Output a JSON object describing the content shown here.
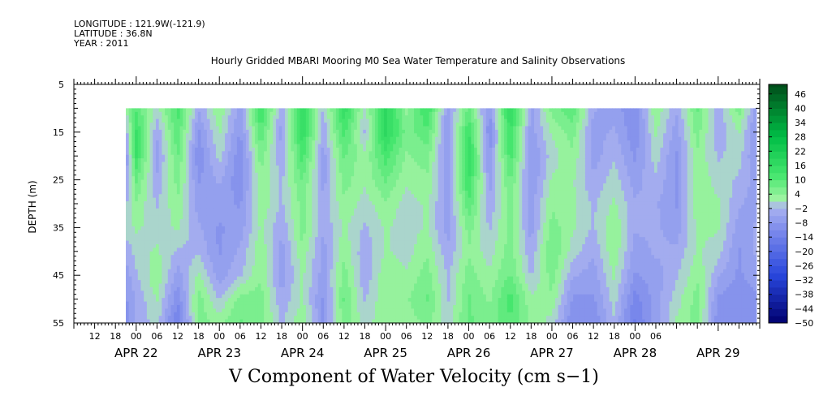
{
  "header": {
    "longitude": "LONGITUDE : 121.9W(-121.9)",
    "latitude": "LATITUDE : 36.8N",
    "year": "YEAR : 2011"
  },
  "chart_data": {
    "type": "heatmap",
    "title": "Hourly Gridded MBARI Mooring M0 Sea Water Temperature and Salinity Observations",
    "xlabel": "V Component of Water Velocity (cm s−1)",
    "ylabel": "DEPTH (m)",
    "y_axis": {
      "range": [
        5,
        55
      ],
      "inverted": true,
      "ticks": [
        5,
        15,
        25,
        35,
        45,
        55
      ]
    },
    "x_axis": {
      "start": "APR 21 2011 06:00",
      "end": "APR 29 2011 12:00",
      "hour_tick_labels": [
        {
          "day": 21,
          "hour": 12,
          "label": "12"
        },
        {
          "day": 21,
          "hour": 18,
          "label": "18"
        },
        {
          "day": 22,
          "hour": 0,
          "label": "00"
        },
        {
          "day": 22,
          "hour": 6,
          "label": "06"
        },
        {
          "day": 22,
          "hour": 12,
          "label": "12"
        },
        {
          "day": 22,
          "hour": 18,
          "label": "18"
        },
        {
          "day": 23,
          "hour": 0,
          "label": "00"
        },
        {
          "day": 23,
          "hour": 6,
          "label": "06"
        },
        {
          "day": 23,
          "hour": 12,
          "label": "12"
        },
        {
          "day": 23,
          "hour": 18,
          "label": "18"
        },
        {
          "day": 24,
          "hour": 0,
          "label": "00"
        },
        {
          "day": 24,
          "hour": 6,
          "label": "06"
        },
        {
          "day": 24,
          "hour": 12,
          "label": "12"
        },
        {
          "day": 24,
          "hour": 18,
          "label": "18"
        },
        {
          "day": 25,
          "hour": 0,
          "label": "00"
        },
        {
          "day": 25,
          "hour": 6,
          "label": "06"
        },
        {
          "day": 25,
          "hour": 12,
          "label": "12"
        },
        {
          "day": 25,
          "hour": 18,
          "label": "18"
        },
        {
          "day": 26,
          "hour": 0,
          "label": "00"
        },
        {
          "day": 26,
          "hour": 6,
          "label": "06"
        },
        {
          "day": 26,
          "hour": 12,
          "label": "12"
        },
        {
          "day": 26,
          "hour": 18,
          "label": "18"
        },
        {
          "day": 27,
          "hour": 0,
          "label": "00"
        },
        {
          "day": 27,
          "hour": 6,
          "label": "06"
        },
        {
          "day": 27,
          "hour": 12,
          "label": "12"
        },
        {
          "day": 27,
          "hour": 18,
          "label": "18"
        },
        {
          "day": 28,
          "hour": 0,
          "label": "00"
        },
        {
          "day": 28,
          "hour": 6,
          "label": "06"
        }
      ],
      "date_labels": [
        {
          "day": 22,
          "label": "APR 22"
        },
        {
          "day": 23,
          "label": "APR 23"
        },
        {
          "day": 24,
          "label": "APR 24"
        },
        {
          "day": 25,
          "label": "APR 25"
        },
        {
          "day": 26,
          "label": "APR 26"
        },
        {
          "day": 27,
          "label": "APR 27"
        },
        {
          "day": 28,
          "label": "APR 28"
        },
        {
          "day": 29,
          "label": "APR 29"
        }
      ]
    },
    "data_extent": {
      "start": "APR 21 2011 21:00",
      "end": "APR 29 2011 11:00",
      "depth_top": 10,
      "depth_bottom": 55
    },
    "colorbar": {
      "min": -50,
      "max": 50,
      "step": 3,
      "tick_labels": [
        "46",
        "40",
        "34",
        "28",
        "22",
        "16",
        "10",
        "4",
        "−2",
        "−8",
        "−14",
        "−20",
        "−26",
        "−32",
        "−38",
        "−44",
        "−50"
      ],
      "tick_values": [
        46,
        40,
        34,
        28,
        22,
        16,
        10,
        4,
        -2,
        -8,
        -14,
        -20,
        -26,
        -32,
        -38,
        -44,
        -50
      ]
    },
    "field_summary": {
      "description_units": "cm s-1",
      "column_values_m10_to_m55": [
        {
          "day": 21,
          "hour": 21,
          "values": [
            2,
            -4,
            -8,
            -6,
            -2,
            0,
            -4,
            -6,
            -8,
            -10
          ]
        },
        {
          "day": 22,
          "hour": 0,
          "values": [
            10,
            14,
            14,
            8,
            4,
            2,
            0,
            -2,
            -4,
            -4
          ]
        },
        {
          "day": 22,
          "hour": 6,
          "values": [
            0,
            -4,
            -6,
            -4,
            -2,
            0,
            2,
            4,
            2,
            0
          ]
        },
        {
          "day": 22,
          "hour": 12,
          "values": [
            12,
            10,
            8,
            6,
            4,
            2,
            -2,
            -6,
            -10,
            -14
          ]
        },
        {
          "day": 22,
          "hour": 18,
          "values": [
            -4,
            -8,
            -10,
            -8,
            -6,
            -4,
            -2,
            2,
            6,
            6
          ]
        },
        {
          "day": 23,
          "hour": 0,
          "values": [
            4,
            2,
            0,
            -4,
            -6,
            -8,
            -8,
            -6,
            -2,
            4
          ]
        },
        {
          "day": 23,
          "hour": 6,
          "values": [
            -6,
            -8,
            -10,
            -10,
            -8,
            -6,
            -4,
            -2,
            6,
            8
          ]
        },
        {
          "day": 23,
          "hour": 12,
          "values": [
            14,
            10,
            6,
            4,
            4,
            2,
            4,
            4,
            6,
            6
          ]
        },
        {
          "day": 23,
          "hour": 18,
          "values": [
            -4,
            -6,
            -4,
            -2,
            -2,
            -4,
            -6,
            -6,
            -4,
            -2
          ]
        },
        {
          "day": 24,
          "hour": 0,
          "values": [
            16,
            16,
            12,
            8,
            6,
            6,
            4,
            2,
            2,
            4
          ]
        },
        {
          "day": 24,
          "hour": 6,
          "values": [
            -2,
            -4,
            -6,
            -6,
            -4,
            -4,
            -6,
            -6,
            -8,
            -8
          ]
        },
        {
          "day": 24,
          "hour": 12,
          "values": [
            16,
            12,
            8,
            6,
            4,
            2,
            4,
            6,
            8,
            6
          ]
        },
        {
          "day": 24,
          "hour": 18,
          "values": [
            0,
            -2,
            2,
            2,
            0,
            -2,
            -4,
            -4,
            -2,
            0
          ]
        },
        {
          "day": 25,
          "hour": 0,
          "values": [
            18,
            18,
            12,
            8,
            4,
            2,
            2,
            4,
            4,
            4
          ]
        },
        {
          "day": 25,
          "hour": 6,
          "values": [
            4,
            6,
            4,
            2,
            0,
            0,
            0,
            2,
            4,
            2
          ]
        },
        {
          "day": 25,
          "hour": 12,
          "values": [
            14,
            10,
            6,
            4,
            2,
            2,
            4,
            6,
            8,
            6
          ]
        },
        {
          "day": 25,
          "hour": 18,
          "values": [
            -6,
            -8,
            -8,
            -6,
            -6,
            -6,
            -4,
            -2,
            -2,
            0
          ]
        },
        {
          "day": 26,
          "hour": 0,
          "values": [
            8,
            14,
            16,
            14,
            10,
            6,
            4,
            6,
            8,
            8
          ]
        },
        {
          "day": 26,
          "hour": 6,
          "values": [
            -8,
            -10,
            -8,
            -6,
            -4,
            -2,
            0,
            2,
            4,
            6
          ]
        },
        {
          "day": 26,
          "hour": 12,
          "values": [
            18,
            14,
            12,
            8,
            6,
            6,
            6,
            8,
            12,
            10
          ]
        },
        {
          "day": 26,
          "hour": 18,
          "values": [
            -6,
            -6,
            -8,
            -8,
            -6,
            -6,
            -4,
            -2,
            2,
            4
          ]
        },
        {
          "day": 27,
          "hour": 0,
          "values": [
            6,
            2,
            0,
            2,
            4,
            6,
            8,
            6,
            4,
            0
          ]
        },
        {
          "day": 27,
          "hour": 6,
          "values": [
            10,
            6,
            4,
            2,
            2,
            2,
            0,
            -4,
            -8,
            -10
          ]
        },
        {
          "day": 27,
          "hour": 12,
          "values": [
            -4,
            -6,
            -6,
            -4,
            -2,
            -2,
            -4,
            -6,
            -8,
            -10
          ]
        },
        {
          "day": 27,
          "hour": 18,
          "values": [
            -6,
            -4,
            -2,
            0,
            2,
            4,
            4,
            2,
            0,
            -2
          ]
        },
        {
          "day": 28,
          "hour": 0,
          "values": [
            -10,
            -10,
            -8,
            -6,
            -4,
            -4,
            -6,
            -8,
            -12,
            -14
          ]
        },
        {
          "day": 28,
          "hour": 6,
          "values": [
            4,
            2,
            0,
            -2,
            -4,
            -4,
            -4,
            -6,
            -6,
            -6
          ]
        },
        {
          "day": 28,
          "hour": 12,
          "values": [
            -4,
            -6,
            -8,
            -8,
            -8,
            -6,
            -4,
            -2,
            0,
            2
          ]
        },
        {
          "day": 28,
          "hour": 18,
          "values": [
            8,
            6,
            4,
            4,
            4,
            2,
            2,
            4,
            6,
            6
          ]
        },
        {
          "day": 29,
          "hour": 0,
          "values": [
            -4,
            -4,
            -2,
            0,
            2,
            2,
            0,
            -4,
            -8,
            -10
          ]
        },
        {
          "day": 29,
          "hour": 6,
          "values": [
            6,
            2,
            0,
            -2,
            -4,
            -6,
            -8,
            -8,
            -10,
            -10
          ]
        },
        {
          "day": 29,
          "hour": 11,
          "values": [
            -6,
            -8,
            -8,
            -6,
            -6,
            -4,
            -4,
            -6,
            -8,
            -10
          ]
        }
      ]
    },
    "grid": false,
    "legend": "colorbar-right"
  },
  "colors": {
    "scale_bottom": "#00006e",
    "scale_mid_low": "#a8b2f0",
    "scale_mid_high": "#a6f5a6",
    "scale_top": "#004d1a"
  }
}
